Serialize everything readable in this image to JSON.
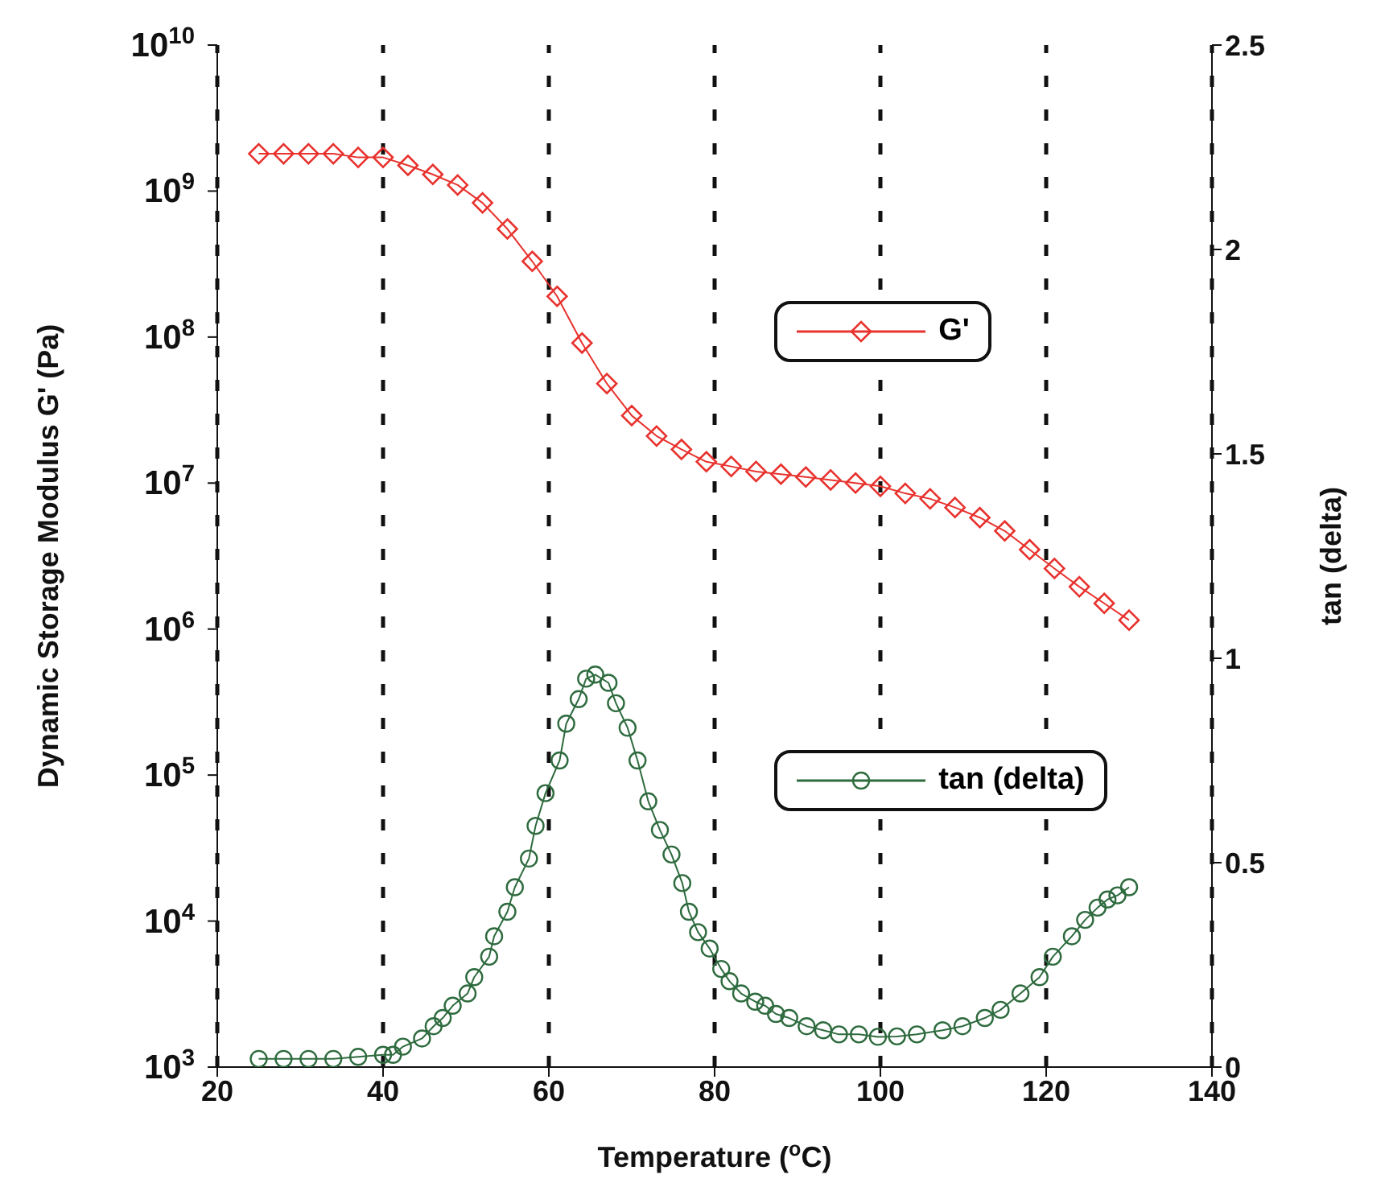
{
  "chart_data": {
    "type": "line",
    "xlabel": "Temperature ($^{o}$C)",
    "ylabel": "Dynamic Storage Modulus G' (Pa)",
    "y2label": "tan (delta)",
    "xlim": [
      20,
      140
    ],
    "xticks": [
      20,
      40,
      60,
      80,
      100,
      120,
      140
    ],
    "ylim": [
      1000,
      10000000000
    ],
    "yticks": [
      {
        "value": 1000,
        "label": "10$^{3}$"
      },
      {
        "value": 10000,
        "label": "10$^{4}$"
      },
      {
        "value": 100000,
        "label": "10$^{5}$"
      },
      {
        "value": 1000000,
        "label": "10$^{6}$"
      },
      {
        "value": 10000000,
        "label": "10$^{7}$"
      },
      {
        "value": 100000000,
        "label": "10$^{8}$"
      },
      {
        "value": 1000000000,
        "label": "10$^{9}$"
      },
      {
        "value": 10000000000,
        "label": "10$^{10}$"
      }
    ],
    "y2lim": [
      0,
      2.5
    ],
    "y2ticks": [
      0,
      0.5,
      1,
      1.5,
      2,
      2.5
    ],
    "log": "y",
    "grid": true,
    "legend": "right",
    "line_style": "solid",
    "series": [
      {
        "name": "G'",
        "color": "#e8322e",
        "marker": "diamond",
        "x": [
          25,
          28,
          31,
          34,
          37,
          40,
          43,
          46,
          49,
          52,
          55,
          58,
          61,
          64,
          67,
          70,
          73,
          76,
          79,
          82,
          85,
          88,
          91,
          94,
          97,
          100,
          103,
          106,
          109,
          112,
          115,
          118,
          121,
          124,
          127,
          130
        ],
        "values": [
          1800000000,
          1800000000,
          1800000000,
          1800000000,
          1700000000,
          1700000000,
          1500000000,
          1300000000,
          1100000000,
          830000000,
          550000000,
          330000000,
          190000000,
          91000000,
          48000000,
          29000000,
          21000000,
          17000000,
          14000000,
          13000000,
          12000000,
          11500000,
          11000000,
          10500000,
          10000000,
          9500000,
          8500000,
          7800000,
          6800000,
          5800000,
          4700000,
          3500000,
          2600000,
          1950000,
          1500000,
          1150000
        ]
      },
      {
        "name": "tan (delta)",
        "color": "#2e6b3e",
        "marker": "circle",
        "axis": "y2",
        "x": [
          25,
          28,
          31,
          34,
          37,
          40,
          41.2,
          42.4,
          44.7,
          46.1,
          47.2,
          48.4,
          50.2,
          51,
          52.8,
          53.4,
          55,
          55.9,
          57.6,
          58.4,
          59.6,
          61.3,
          62.1,
          63.6,
          64.5,
          65.6,
          67.2,
          68.1,
          69.5,
          70.7,
          72,
          73.4,
          74.8,
          76.1,
          76.9,
          78,
          79.4,
          80.8,
          81.8,
          83.2,
          84.9,
          86.1,
          87.4,
          89,
          91.1,
          93.1,
          95,
          97.4,
          99.7,
          102,
          104.4,
          107.5,
          109.9,
          112.6,
          114.5,
          116.9,
          119.2,
          120.8,
          123.1,
          124.7,
          126.2,
          127.4,
          128.6,
          130
        ],
        "values": [
          0.02,
          0.02,
          0.02,
          0.02,
          0.025,
          0.03,
          0.03,
          0.05,
          0.07,
          0.1,
          0.12,
          0.15,
          0.18,
          0.22,
          0.27,
          0.32,
          0.38,
          0.44,
          0.51,
          0.59,
          0.67,
          0.75,
          0.84,
          0.9,
          0.95,
          0.96,
          0.94,
          0.89,
          0.83,
          0.75,
          0.65,
          0.58,
          0.52,
          0.45,
          0.38,
          0.33,
          0.29,
          0.24,
          0.21,
          0.18,
          0.16,
          0.15,
          0.13,
          0.12,
          0.1,
          0.09,
          0.08,
          0.08,
          0.074,
          0.075,
          0.08,
          0.09,
          0.1,
          0.12,
          0.14,
          0.18,
          0.22,
          0.27,
          0.32,
          0.36,
          0.39,
          0.41,
          0.42,
          0.44
        ]
      }
    ]
  }
}
